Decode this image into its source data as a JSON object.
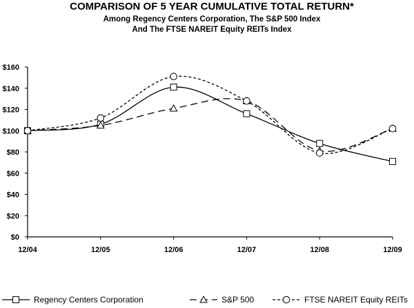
{
  "chart_data": {
    "type": "line",
    "title": "COMPARISON OF 5 YEAR CUMULATIVE TOTAL RETURN*",
    "subtitle_lines": [
      "Among Regency Centers Corporation, The S&P 500 Index",
      "And The FTSE NAREIT Equity REITs Index"
    ],
    "categories": [
      "12/04",
      "12/05",
      "12/06",
      "12/07",
      "12/08",
      "12/09"
    ],
    "yticks": [
      "$0",
      "$20",
      "$40",
      "$60",
      "$80",
      "$100",
      "$120",
      "$140",
      "$160"
    ],
    "ylim": [
      0,
      160
    ],
    "series": [
      {
        "name": "Regency Centers Corporation",
        "values": [
          100,
          106,
          141,
          116,
          88,
          71
        ],
        "marker": "square",
        "dash": "solid",
        "color": "#000000"
      },
      {
        "name": "S&P 500",
        "values": [
          100,
          105,
          121,
          128,
          81,
          102
        ],
        "marker": "triangle",
        "dash": "long-dash",
        "color": "#000000"
      },
      {
        "name": "FTSE NAREIT Equity REITs",
        "values": [
          100,
          112,
          151,
          128,
          79,
          102
        ],
        "marker": "circle",
        "dash": "short-dash",
        "color": "#000000"
      }
    ],
    "grid": false,
    "legend_position": "bottom"
  }
}
